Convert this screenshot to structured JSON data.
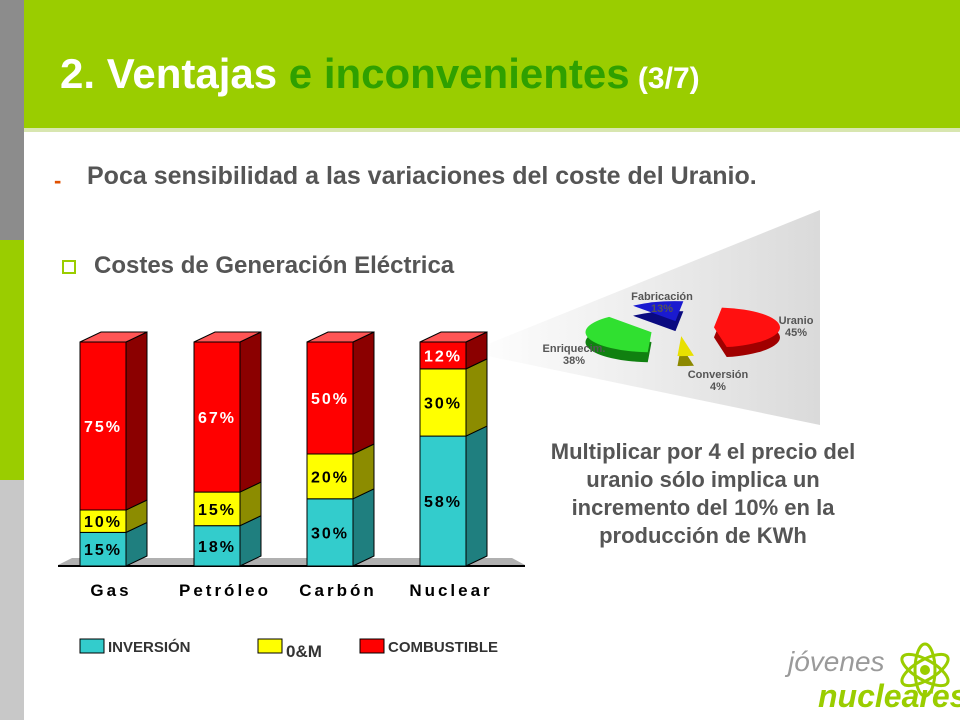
{
  "header": {
    "title_part1": "2. Ventajas",
    "title_part2": " e inconvenientes",
    "title_part3": " (3/7)"
  },
  "bullet": {
    "dash": "-",
    "text": "Poca sensibilidad a las variaciones del coste del Uranio."
  },
  "chart_title": "Costes de Generación Eléctrica",
  "note": "Multiplicar por 4 el precio del uranio sólo implica un incremento del 10% en la producción de KWh",
  "logo": {
    "line1": "jóvenes",
    "line2": "nucleares"
  },
  "colors": {
    "header": "#9acd00",
    "title_accent": "#2fa000",
    "inversion": "#33cccc",
    "om": "#ffff00",
    "combustible": "#ff0000"
  },
  "chart_data": [
    {
      "type": "bar",
      "stacked": true,
      "categories": [
        "Gas",
        "Petróleo",
        "Carbón",
        "Nuclear"
      ],
      "series": [
        {
          "name": "INVERSIÓN",
          "values": [
            15,
            18,
            30,
            58
          ],
          "labels": [
            "15%",
            "18%",
            "30%",
            "58%"
          ]
        },
        {
          "name": "0&M",
          "values": [
            10,
            15,
            20,
            30
          ],
          "labels": [
            "10%",
            "15%",
            "20%",
            "30%"
          ]
        },
        {
          "name": "COMBUSTIBLE",
          "values": [
            75,
            67,
            50,
            12
          ],
          "labels": [
            "75%",
            "67%",
            "50%",
            "12%"
          ]
        }
      ],
      "ylim": [
        0,
        100
      ],
      "legend": "bottom",
      "grid": false
    },
    {
      "type": "pie",
      "categories": [
        "Uranio",
        "Conversión",
        "Enriquecim.",
        "Fabricación"
      ],
      "values": [
        45,
        4,
        38,
        13
      ],
      "labels": [
        "45%",
        "4%",
        "38%",
        "13%"
      ]
    }
  ]
}
